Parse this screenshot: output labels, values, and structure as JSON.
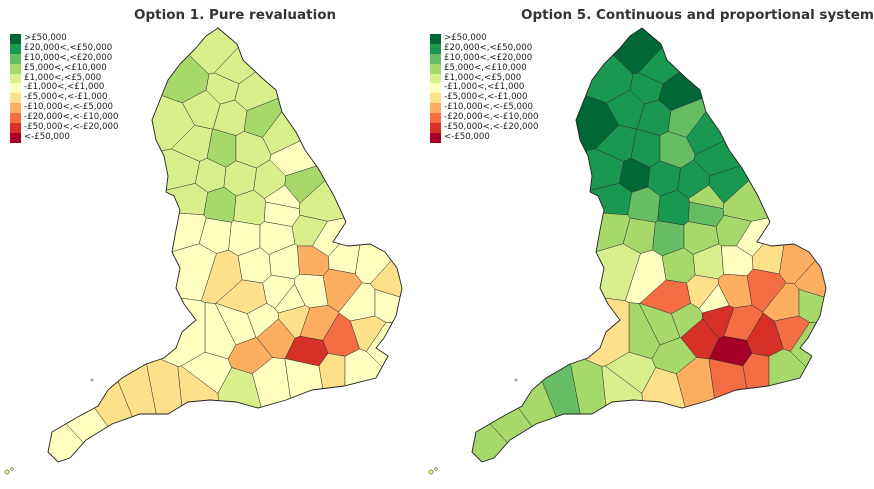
{
  "legend_bins": [
    {
      "label": ">£50,000",
      "color": "#006837"
    },
    {
      "label": "£20,000<,<£50,000",
      "color": "#1a9850"
    },
    {
      "label": "£10,000<,<£20,000",
      "color": "#66bd63"
    },
    {
      "label": "£5,000<,<£10,000",
      "color": "#a6d96a"
    },
    {
      "label": "£1,000<,<£5,000",
      "color": "#d9ef8b"
    },
    {
      "label": "-£1,000<,<£1,000",
      "color": "#ffffbf"
    },
    {
      "label": "-£5,000<,<-£1,000",
      "color": "#fee08b"
    },
    {
      "label": "-£10,000<,<-£5,000",
      "color": "#fdae61"
    },
    {
      "label": "-£20,000<,<-£10,000",
      "color": "#f46d43"
    },
    {
      "label": "-£50,000<,<-£20,000",
      "color": "#d73027"
    },
    {
      "label": "<-£50,000",
      "color": "#a50026"
    }
  ],
  "maps": [
    {
      "title": "Option 1. Pure revaluation",
      "region_bins": [
        4,
        4,
        4,
        4,
        3,
        4,
        4,
        3,
        4,
        4,
        4,
        3,
        4,
        5,
        4,
        4,
        4,
        4,
        3,
        4,
        3,
        4,
        5,
        4,
        5,
        5,
        5,
        5,
        4,
        5,
        6,
        5,
        5,
        7,
        5,
        5,
        6,
        7,
        5,
        5,
        6,
        7,
        6,
        7,
        9,
        8,
        6,
        5,
        6,
        5,
        5,
        4,
        5,
        5,
        7,
        5,
        6,
        6,
        6,
        6,
        5,
        5,
        5,
        5,
        5,
        5,
        5,
        5,
        5,
        5
      ]
    },
    {
      "title": "Option 5. Continuous and proportional system",
      "region_bins": [
        0,
        1,
        1,
        0,
        1,
        1,
        1,
        2,
        0,
        1,
        1,
        1,
        2,
        1,
        1,
        0,
        1,
        1,
        1,
        1,
        2,
        1,
        2,
        3,
        3,
        3,
        2,
        3,
        3,
        4,
        5,
        3,
        4,
        5,
        6,
        7,
        7,
        8,
        7,
        6,
        8,
        8,
        9,
        9,
        10,
        9,
        8,
        7,
        8,
        8,
        7,
        6,
        4,
        3,
        3,
        6,
        4,
        3,
        2,
        3,
        3,
        3,
        3,
        3,
        3,
        3,
        3,
        5,
        5,
        3
      ]
    }
  ]
}
